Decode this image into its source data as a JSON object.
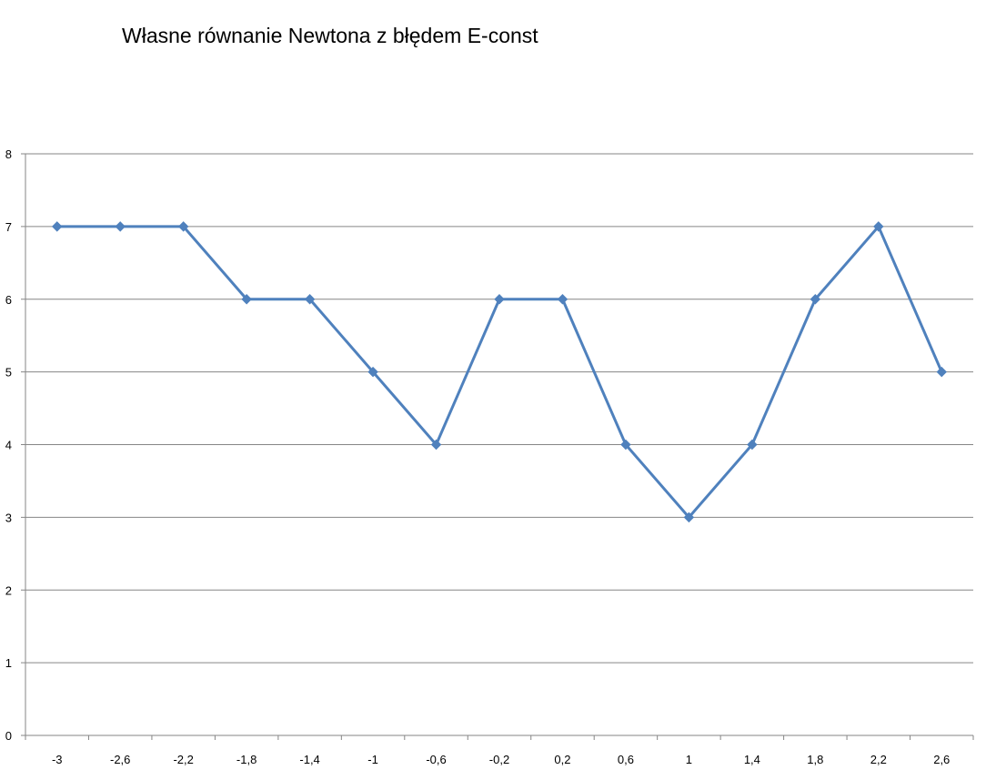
{
  "chart_data": {
    "type": "line",
    "title": "Własne równanie Newtona z błędem E-const",
    "xlabel": "",
    "ylabel": "",
    "categories": [
      "-3",
      "-2,6",
      "-2,2",
      "-1,8",
      "-1,4",
      "-1",
      "-0,6",
      "-0,2",
      "0,2",
      "0,6",
      "1",
      "1,4",
      "1,8",
      "2,2",
      "2,6"
    ],
    "series": [
      {
        "values": [
          7,
          7,
          7,
          6,
          6,
          5,
          4,
          6,
          6,
          4,
          3,
          4,
          6,
          7,
          5
        ],
        "color": "#4F81BD",
        "marker": "diamond"
      }
    ],
    "ylim": [
      0,
      8
    ],
    "yticks": [
      "0",
      "1",
      "2",
      "3",
      "4",
      "5",
      "6",
      "7",
      "8"
    ],
    "grid": true,
    "legend": "none"
  }
}
